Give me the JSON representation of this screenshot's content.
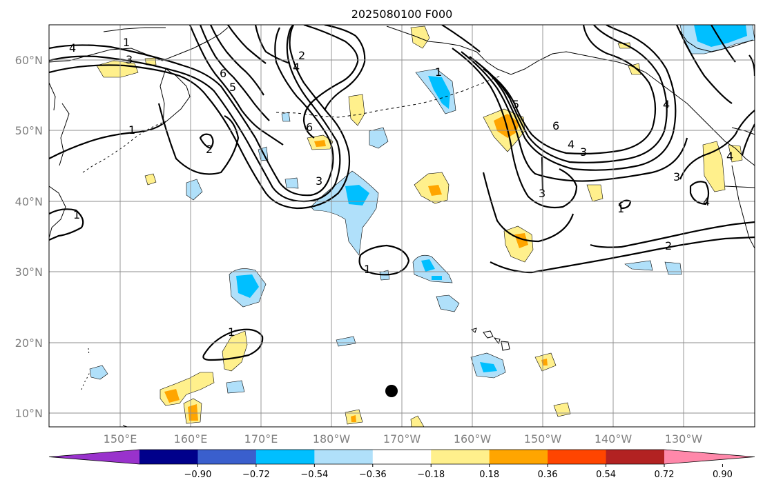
{
  "title": "2025080100 F000",
  "lat_ticks": [
    "10°N",
    "20°N",
    "30°N",
    "40°N",
    "50°N",
    "60°N"
  ],
  "lon_ticks": [
    "150°E",
    "160°E",
    "170°E",
    "180°W",
    "170°W",
    "160°W",
    "150°W",
    "140°W",
    "130°W"
  ],
  "colorbar": {
    "ticks": [
      "−0.90",
      "−0.72",
      "−0.54",
      "−0.36",
      "−0.18",
      "0.18",
      "0.36",
      "0.54",
      "0.72",
      "0.90"
    ],
    "colors": [
      "#9932cc",
      "#00008b",
      "#3a5fcd",
      "#00bfff",
      "#b0e0fa",
      "#ffffff",
      "#fff08c",
      "#ffa500",
      "#ff4500",
      "#b22222",
      "#ff88aa"
    ]
  },
  "contour_labels": {
    "l1": "1",
    "l2": "2",
    "l3": "3",
    "l4": "4",
    "l5": "5",
    "l6": "6"
  },
  "colors": {
    "light_blue": "#b0e0fa",
    "blue": "#00bfff",
    "light_yellow": "#fff08c",
    "orange": "#ffa500"
  },
  "icons": {
    "marker": "dot-marker"
  }
}
